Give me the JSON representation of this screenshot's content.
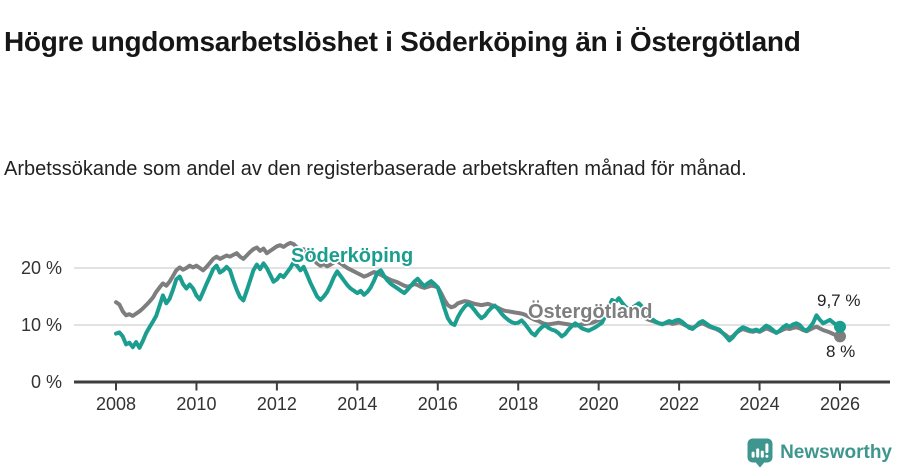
{
  "header": {
    "title": "Högre ungdomsarbetslöshet i Söderköping än i Östergötland",
    "subtitle": "Arbetssökande som andel av den registerbaserade arbetskraften månad för månad."
  },
  "footer": {
    "brand": "Newsworthy",
    "logo_icon": "newsworthy-pin-barchart-icon"
  },
  "colors": {
    "soderkoping": "#1b9e90",
    "ostergotland": "#7e7e7e",
    "axis": "#3d3d3d",
    "gridline": "#d9d9d9",
    "brand_teal": "#3e968f"
  },
  "chart_data": {
    "type": "line",
    "title": "Högre ungdomsarbetslöshet i Söderköping än i Östergötland",
    "subtitle": "Arbetssökande som andel av den registerbaserade arbetskraften månad för månad.",
    "x_unit": "month",
    "x_start": "2008-01",
    "x_end": "2026-01",
    "points_per_year": 12,
    "xlim": [
      2008,
      2027.2
    ],
    "ylim": [
      0,
      26
    ],
    "grid": "horizontal",
    "legend_position": "inline-labels",
    "x_ticks": [
      2008,
      2010,
      2012,
      2014,
      2016,
      2018,
      2020,
      2022,
      2024,
      2026
    ],
    "x_tick_labels": [
      "2008",
      "2010",
      "2012",
      "2014",
      "2016",
      "2018",
      "2020",
      "2022",
      "2024",
      "2026"
    ],
    "y_ticks": [
      0,
      10,
      20
    ],
    "y_tick_labels": [
      "0 %",
      "10 %",
      "20 %"
    ],
    "series": [
      {
        "name": "Östergötland",
        "color": "#7e7e7e",
        "end_value": 8,
        "end_label": "8 %",
        "values": [
          14.0,
          13.6,
          12.4,
          11.7,
          11.9,
          11.6,
          12.0,
          12.4,
          12.9,
          13.5,
          14.1,
          14.8,
          15.8,
          16.6,
          17.3,
          16.9,
          17.6,
          18.6,
          19.6,
          20.1,
          19.7,
          20.0,
          20.4,
          20.1,
          20.4,
          20.0,
          19.6,
          20.2,
          20.9,
          21.6,
          22.0,
          21.6,
          21.9,
          22.2,
          22.0,
          22.3,
          22.6,
          22.0,
          21.6,
          22.2,
          22.8,
          23.3,
          23.6,
          23.0,
          23.4,
          22.6,
          23.0,
          23.4,
          23.8,
          24.0,
          23.7,
          24.1,
          24.4,
          24.2,
          23.6,
          23.0,
          23.3,
          22.6,
          22.0,
          21.4,
          20.8,
          20.4,
          20.7,
          20.3,
          20.6,
          21.0,
          21.2,
          20.8,
          20.4,
          20.0,
          19.7,
          19.4,
          19.1,
          18.8,
          18.5,
          18.7,
          19.0,
          19.3,
          19.1,
          18.8,
          18.5,
          18.2,
          17.9,
          17.7,
          17.5,
          17.2,
          16.9,
          16.7,
          16.9,
          17.2,
          17.0,
          16.7,
          16.5,
          16.7,
          16.9,
          16.8,
          16.6,
          15.6,
          14.4,
          13.5,
          13.1,
          13.3,
          13.8,
          14.0,
          14.2,
          14.1,
          13.9,
          13.7,
          13.6,
          13.5,
          13.6,
          13.7,
          13.5,
          13.3,
          13.0,
          12.7,
          12.5,
          12.4,
          12.3,
          12.2,
          12.1,
          12.0,
          11.8,
          11.5,
          11.2,
          10.9,
          10.7,
          10.4,
          10.2,
          10.1,
          10.2,
          10.3,
          10.4,
          10.3,
          10.2,
          10.1,
          10.0,
          9.9,
          10.0,
          10.1,
          10.2,
          10.3,
          10.4,
          10.6,
          10.9,
          11.2,
          11.8,
          12.4,
          12.8,
          12.9,
          12.7,
          12.5,
          12.3,
          12.2,
          12.1,
          12.0,
          11.8,
          11.5,
          11.2,
          10.9,
          10.7,
          10.5,
          10.3,
          10.2,
          10.3,
          10.4,
          10.2,
          10.3,
          10.5,
          10.2,
          9.9,
          9.7,
          9.5,
          9.8,
          10.1,
          10.3,
          10.0,
          9.7,
          9.5,
          9.3,
          9.0,
          8.6,
          8.2,
          7.7,
          8.0,
          8.6,
          9.0,
          9.3,
          9.1,
          8.9,
          8.8,
          9.0,
          8.8,
          9.1,
          9.4,
          9.2,
          8.9,
          8.7,
          8.9,
          9.2,
          9.4,
          9.3,
          9.5,
          9.6,
          9.4,
          9.1,
          8.9,
          9.2,
          9.5,
          9.7,
          9.4,
          9.1,
          8.9,
          8.7,
          8.4,
          8.2,
          8.0
        ]
      },
      {
        "name": "Söderköping",
        "color": "#1b9e90",
        "end_value": 9.7,
        "end_label": "9,7 %",
        "values": [
          8.5,
          8.7,
          8.0,
          6.6,
          6.9,
          6.1,
          7.0,
          6.0,
          7.2,
          8.6,
          9.6,
          10.6,
          11.6,
          13.4,
          15.2,
          13.8,
          14.6,
          16.2,
          18.0,
          18.5,
          17.2,
          16.4,
          17.1,
          16.4,
          15.2,
          14.5,
          15.8,
          17.2,
          18.5,
          19.8,
          20.4,
          19.2,
          19.6,
          20.2,
          19.6,
          17.8,
          16.2,
          14.9,
          14.3,
          16.0,
          17.8,
          19.6,
          20.6,
          19.8,
          20.8,
          20.0,
          18.8,
          17.6,
          18.0,
          18.8,
          18.4,
          19.2,
          20.0,
          21.0,
          20.4,
          19.6,
          20.2,
          18.8,
          17.4,
          16.2,
          15.0,
          14.4,
          15.0,
          15.8,
          17.0,
          18.4,
          19.4,
          18.6,
          17.8,
          17.0,
          16.4,
          16.0,
          15.6,
          16.0,
          15.3,
          15.8,
          16.6,
          17.8,
          19.2,
          19.6,
          18.6,
          17.8,
          17.2,
          16.8,
          16.4,
          16.0,
          15.6,
          16.2,
          16.9,
          17.6,
          18.1,
          17.4,
          16.8,
          17.3,
          17.7,
          17.2,
          16.6,
          14.8,
          12.9,
          11.2,
          10.3,
          10.0,
          11.4,
          12.4,
          13.2,
          13.7,
          13.3,
          12.6,
          11.8,
          11.2,
          11.6,
          12.4,
          13.0,
          13.4,
          12.8,
          12.0,
          11.4,
          10.9,
          10.5,
          10.3,
          10.4,
          10.8,
          10.2,
          9.4,
          8.6,
          8.2,
          9.0,
          9.6,
          10.0,
          9.5,
          9.2,
          9.0,
          8.6,
          8.0,
          8.4,
          9.2,
          9.8,
          10.3,
          9.9,
          9.4,
          9.2,
          9.0,
          9.3,
          9.6,
          10.0,
          10.4,
          11.6,
          13.2,
          14.4,
          14.0,
          14.7,
          13.9,
          13.2,
          12.8,
          13.0,
          13.4,
          13.8,
          13.2,
          12.4,
          11.6,
          11.0,
          10.6,
          10.3,
          10.1,
          10.4,
          10.7,
          10.5,
          10.8,
          10.9,
          10.5,
          10.0,
          9.5,
          9.3,
          9.8,
          10.4,
          10.7,
          10.3,
          9.9,
          9.6,
          9.4,
          9.2,
          8.6,
          8.0,
          7.3,
          7.8,
          8.6,
          9.2,
          9.6,
          9.4,
          9.1,
          9.0,
          9.2,
          8.9,
          9.4,
          9.9,
          9.6,
          9.1,
          8.6,
          9.0,
          9.6,
          10.0,
          9.7,
          10.1,
          10.3,
          10.0,
          9.3,
          9.0,
          9.6,
          10.4,
          11.7,
          10.9,
          10.3,
          10.6,
          10.9,
          10.4,
          10.0,
          9.7
        ]
      }
    ]
  }
}
